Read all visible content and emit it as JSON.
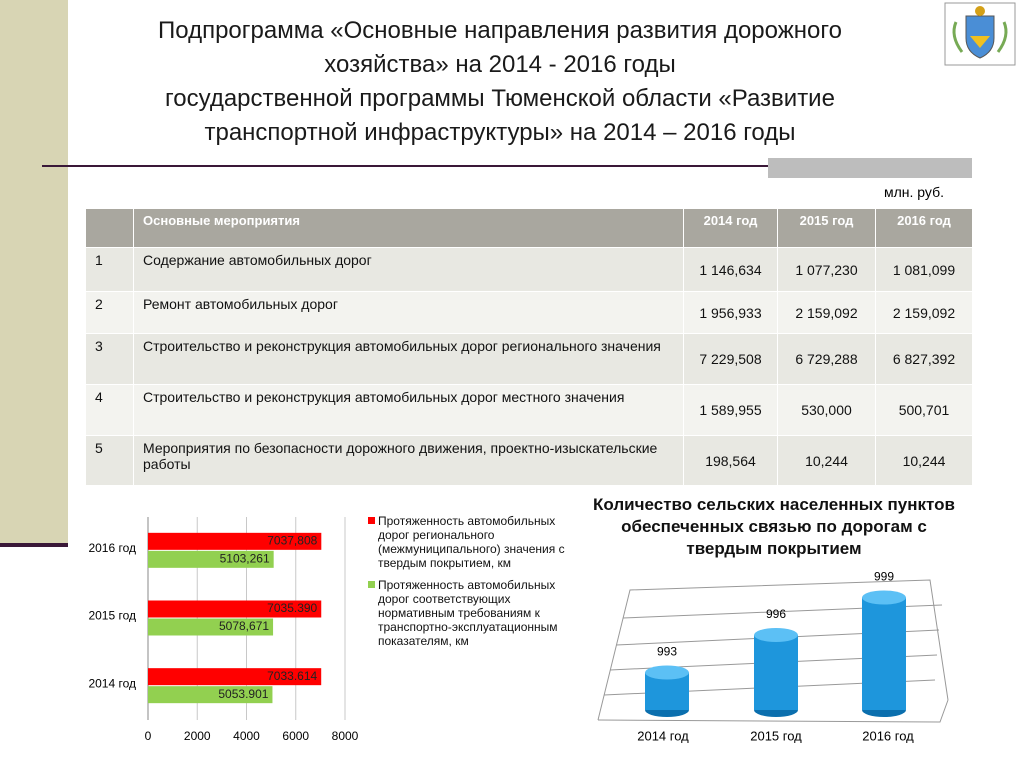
{
  "title": [
    "Подпрограмма «Основные направления развития дорожного",
    "хозяйства» на 2014 - 2016 годы",
    "государственной программы Тюменской области «Развитие",
    "транспортной инфраструктуры» на 2014 – 2016 годы"
  ],
  "unit": "млн. руб.",
  "table": {
    "header": [
      "",
      "Основные мероприятия",
      "2014 год",
      "2015 год",
      "2016 год"
    ],
    "rows": [
      [
        "1",
        "Содержание автомобильных дорог",
        "1 146,634",
        "1 077,230",
        "1 081,099"
      ],
      [
        "2",
        "Ремонт автомобильных дорог",
        "1 956,933",
        "2 159,092",
        "2 159,092"
      ],
      [
        "3",
        "Строительство и реконструкция автомобильных дорог регионального значения",
        "7 229,508",
        "6 729,288",
        "6 827,392"
      ],
      [
        "4",
        "Строительство и реконструкция автомобильных дорог местного значения",
        "1 589,955",
        "530,000",
        "500,701"
      ],
      [
        "5",
        "Мероприятия по безопасности дорожного движения, проектно-изыскательские работы",
        "198,564",
        "10,244",
        "10,244"
      ]
    ]
  },
  "chart_data": [
    {
      "type": "hbar",
      "categories": [
        "2014 год",
        "2015 год",
        "2016 год"
      ],
      "xlim": [
        0,
        8000
      ],
      "xticks": [
        0,
        2000,
        4000,
        6000,
        8000
      ],
      "grid": true,
      "series": [
        {
          "name": "Протяженность автомобильных дорог регионального (межмуниципального) значения с твердым покрытием, км",
          "color": "#ff0000",
          "values": [
            7033.614,
            7035.39,
            7037.808
          ],
          "value_labels": [
            "7033.614",
            "7035.390",
            "7037,808"
          ]
        },
        {
          "name": "Протяженность автомобильных дорог соответствующих нормативным требованиям к транспортно-эксплуатационным показателям, км",
          "color": "#92d050",
          "values": [
            5053.901,
            5078.671,
            5103.261
          ],
          "value_labels": [
            "5053.901",
            "5078,671",
            "5103,261"
          ]
        }
      ]
    },
    {
      "type": "cylinder",
      "title": "Количество сельских населенных пунктов обеспеченных связью по дорогам с твердым покрытием",
      "categories": [
        "2014 год",
        "2015 год",
        "2016 год"
      ],
      "values": [
        993,
        996,
        999
      ],
      "color": "#1e96dc",
      "ylim": [
        990,
        1000
      ]
    }
  ]
}
